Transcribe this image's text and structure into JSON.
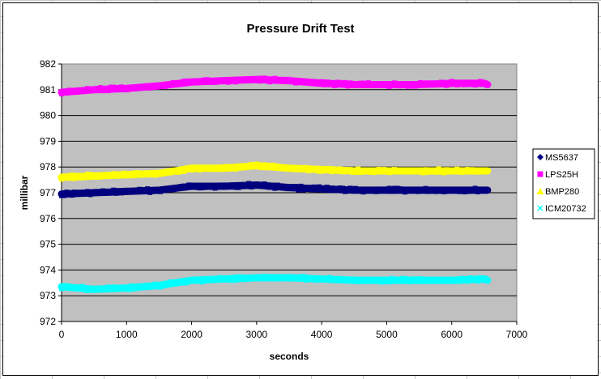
{
  "chart_data": {
    "type": "scatter",
    "title": "Pressure Drift Test",
    "xlabel": "seconds",
    "ylabel": "millibar",
    "xlim": [
      0,
      7000
    ],
    "ylim": [
      972,
      982
    ],
    "x_ticks": [
      0,
      1000,
      2000,
      3000,
      4000,
      5000,
      6000,
      7000
    ],
    "y_ticks": [
      972,
      973,
      974,
      975,
      976,
      977,
      978,
      979,
      980,
      981,
      982
    ],
    "grid": "horizontal",
    "plot_background": "#c0c0c0",
    "legend_position": "right",
    "series": [
      {
        "name": "MS5637",
        "color": "#00007f",
        "marker": "diamond",
        "x": [
          0,
          500,
          1000,
          1500,
          2000,
          2500,
          3000,
          3500,
          4000,
          4500,
          5000,
          5500,
          6000,
          6500,
          6550
        ],
        "y": [
          976.95,
          977.0,
          977.05,
          977.1,
          977.25,
          977.25,
          977.3,
          977.2,
          977.15,
          977.1,
          977.1,
          977.1,
          977.1,
          977.1,
          977.1
        ]
      },
      {
        "name": "LPS25H",
        "color": "#ff00ff",
        "marker": "square",
        "x": [
          0,
          500,
          1000,
          1500,
          2000,
          2500,
          3000,
          3500,
          4000,
          4500,
          5000,
          5500,
          6000,
          6500,
          6550
        ],
        "y": [
          980.9,
          981.0,
          981.05,
          981.15,
          981.3,
          981.35,
          981.4,
          981.35,
          981.25,
          981.2,
          981.2,
          981.2,
          981.25,
          981.25,
          981.2
        ]
      },
      {
        "name": "BMP280",
        "color": "#ffff00",
        "marker": "triangle",
        "x": [
          0,
          500,
          1000,
          1500,
          2000,
          2500,
          3000,
          3500,
          4000,
          4500,
          5000,
          5500,
          6000,
          6500,
          6550
        ],
        "y": [
          977.6,
          977.65,
          977.7,
          977.75,
          977.95,
          977.95,
          978.05,
          977.95,
          977.9,
          977.85,
          977.85,
          977.85,
          977.85,
          977.85,
          977.85
        ]
      },
      {
        "name": "ICM20732",
        "color": "#00ffff",
        "marker": "x",
        "x": [
          0,
          500,
          1000,
          1500,
          2000,
          2500,
          3000,
          3500,
          4000,
          4500,
          5000,
          5500,
          6000,
          6500,
          6550
        ],
        "y": [
          973.35,
          973.25,
          973.3,
          973.4,
          973.6,
          973.65,
          973.7,
          973.7,
          973.65,
          973.6,
          973.6,
          973.6,
          973.6,
          973.65,
          973.6
        ]
      }
    ]
  }
}
